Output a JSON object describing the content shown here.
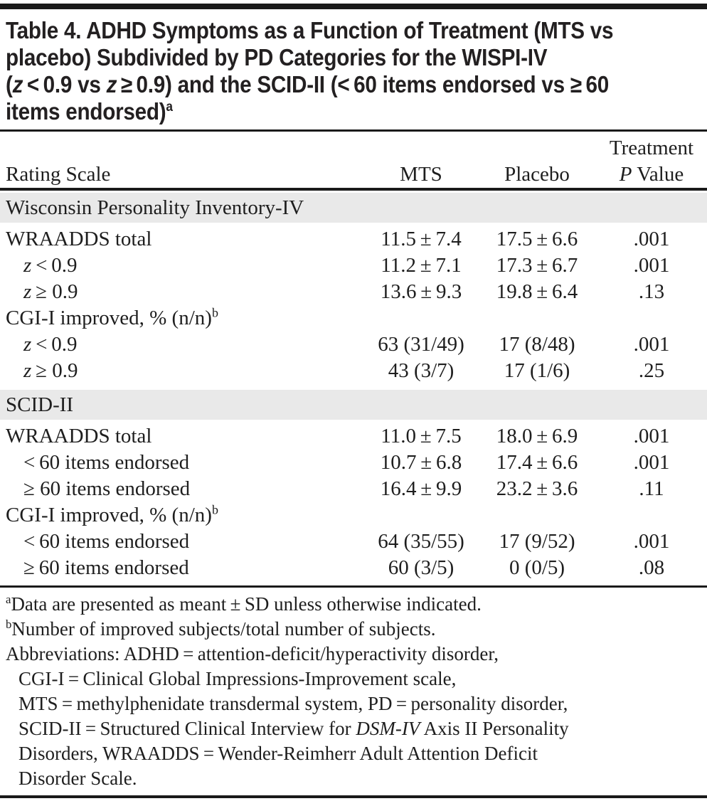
{
  "colors": {
    "text": "#1e1e1e",
    "title_text": "#232021",
    "rule": "#1a1a1a",
    "section_band_bg": "#e9e9e9",
    "page_bg": "#ffffff"
  },
  "title": {
    "lines": [
      [
        {
          "t": "Table 4. ADHD Symptoms as a Function of Treatment (MTS vs"
        }
      ],
      [
        {
          "t": "placebo) Subdivided by PD Categories for the WISPI-IV"
        }
      ],
      [
        {
          "t": "("
        },
        {
          "t": "z",
          "i": true
        },
        {
          "t": " < 0.9 vs "
        },
        {
          "t": "z",
          "i": true
        },
        {
          "t": " ≥ 0.9) and the SCID-II (< 60 items endorsed vs ≥ 60"
        }
      ],
      [
        {
          "t": "items endorsed)"
        },
        {
          "t": "a",
          "sup": true
        }
      ]
    ]
  },
  "table": {
    "header": {
      "rating_scale": "Rating Scale",
      "mts": "MTS",
      "placebo": "Placebo",
      "treatment": "Treatment",
      "p_value": [
        {
          "t": "P",
          "i": true
        },
        {
          "t": " Value"
        }
      ]
    },
    "rows": [
      {
        "type": "section",
        "label": [
          {
            "t": "Wisconsin Personality Inventory-IV"
          }
        ]
      },
      {
        "type": "data",
        "indent": false,
        "label": [
          {
            "t": "WRAADDS total"
          }
        ],
        "mts": "11.5 ± 7.4",
        "placebo": "17.5 ± 6.6",
        "p": ".001"
      },
      {
        "type": "data",
        "indent": true,
        "label": [
          {
            "t": "z",
            "i": true
          },
          {
            "t": " < 0.9"
          }
        ],
        "mts": "11.2 ± 7.1",
        "placebo": "17.3 ± 6.7",
        "p": ".001"
      },
      {
        "type": "data",
        "indent": true,
        "label": [
          {
            "t": "z",
            "i": true
          },
          {
            "t": " ≥ 0.9"
          }
        ],
        "mts": "13.6 ± 9.3",
        "placebo": "19.8 ± 6.4",
        "p": ".13"
      },
      {
        "type": "data",
        "indent": false,
        "label": [
          {
            "t": "CGI-I improved, % (n/n)"
          },
          {
            "t": "b",
            "sup": true
          }
        ],
        "mts": "",
        "placebo": "",
        "p": ""
      },
      {
        "type": "data",
        "indent": true,
        "label": [
          {
            "t": "z",
            "i": true
          },
          {
            "t": " < 0.9"
          }
        ],
        "mts": "63 (31/49)",
        "placebo": "17 (8/48)",
        "p": ".001"
      },
      {
        "type": "data",
        "indent": true,
        "label": [
          {
            "t": "z",
            "i": true
          },
          {
            "t": " ≥ 0.9"
          }
        ],
        "mts": "43 (3/7)",
        "placebo": "17 (1/6)",
        "p": ".25"
      },
      {
        "type": "section",
        "label": [
          {
            "t": "SCID-II"
          }
        ]
      },
      {
        "type": "data",
        "indent": false,
        "label": [
          {
            "t": "WRAADDS total"
          }
        ],
        "mts": "11.0 ± 7.5",
        "placebo": "18.0 ± 6.9",
        "p": ".001"
      },
      {
        "type": "data",
        "indent": true,
        "label": [
          {
            "t": "< 60 items endorsed"
          }
        ],
        "mts": "10.7 ± 6.8",
        "placebo": "17.4 ± 6.6",
        "p": ".001"
      },
      {
        "type": "data",
        "indent": true,
        "label": [
          {
            "t": "≥ 60 items endorsed"
          }
        ],
        "mts": "16.4 ± 9.9",
        "placebo": "23.2 ± 3.6",
        "p": ".11"
      },
      {
        "type": "data",
        "indent": false,
        "label": [
          {
            "t": "CGI-I improved, % (n/n)"
          },
          {
            "t": "b",
            "sup": true
          }
        ],
        "mts": "",
        "placebo": "",
        "p": ""
      },
      {
        "type": "data",
        "indent": true,
        "label": [
          {
            "t": "< 60 items endorsed"
          }
        ],
        "mts": "64 (35/55)",
        "placebo": "17 (9/52)",
        "p": ".001"
      },
      {
        "type": "data",
        "indent": true,
        "label": [
          {
            "t": "≥ 60 items endorsed"
          }
        ],
        "mts": "60 (3/5)",
        "placebo": "0 (0/5)",
        "p": ".08"
      }
    ]
  },
  "footnotes": {
    "lines": [
      {
        "indent": false,
        "segs": [
          {
            "t": "a",
            "sup": true
          },
          {
            "t": "Data are presented as meant ± SD unless otherwise indicated."
          }
        ]
      },
      {
        "indent": false,
        "segs": [
          {
            "t": "b",
            "sup": true
          },
          {
            "t": "Number of improved subjects/total number of subjects."
          }
        ]
      },
      {
        "indent": false,
        "segs": [
          {
            "t": "Abbreviations: ADHD = attention-deficit/hyperactivity disorder,"
          }
        ]
      },
      {
        "indent": true,
        "segs": [
          {
            "t": "CGI-I = Clinical Global Impressions-Improvement scale,"
          }
        ]
      },
      {
        "indent": true,
        "segs": [
          {
            "t": "MTS = methylphenidate transdermal system, PD = personality disorder,"
          }
        ]
      },
      {
        "indent": true,
        "segs": [
          {
            "t": "SCID-II = Structured Clinical Interview for "
          },
          {
            "t": "DSM-IV",
            "i": true
          },
          {
            "t": " Axis II Personality"
          }
        ]
      },
      {
        "indent": true,
        "segs": [
          {
            "t": "Disorders, WRAADDS = Wender-Reimherr Adult Attention Deficit"
          }
        ]
      },
      {
        "indent": true,
        "segs": [
          {
            "t": "Disorder Scale."
          }
        ]
      }
    ]
  }
}
